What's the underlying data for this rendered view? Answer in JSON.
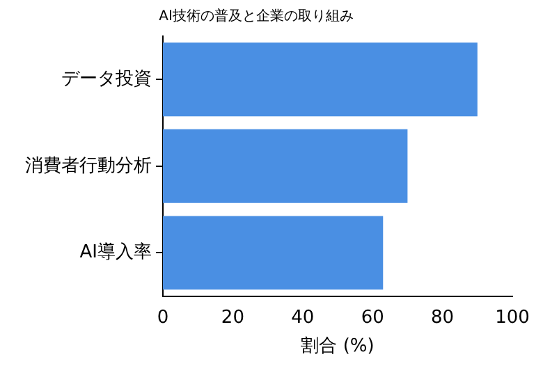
{
  "chart_data": {
    "type": "bar",
    "orientation": "horizontal",
    "title": "AI技術の普及と企業の取り組み",
    "xlabel": "割合 (%)",
    "categories": [
      "データ投資",
      "消費者行動分析",
      "AI導入率"
    ],
    "values": [
      90,
      70,
      63
    ],
    "color": "#4a8fe3",
    "xlim": [
      0,
      100
    ],
    "xticks": [
      0,
      20,
      40,
      60,
      80,
      100
    ],
    "grid": false,
    "legend": false
  }
}
